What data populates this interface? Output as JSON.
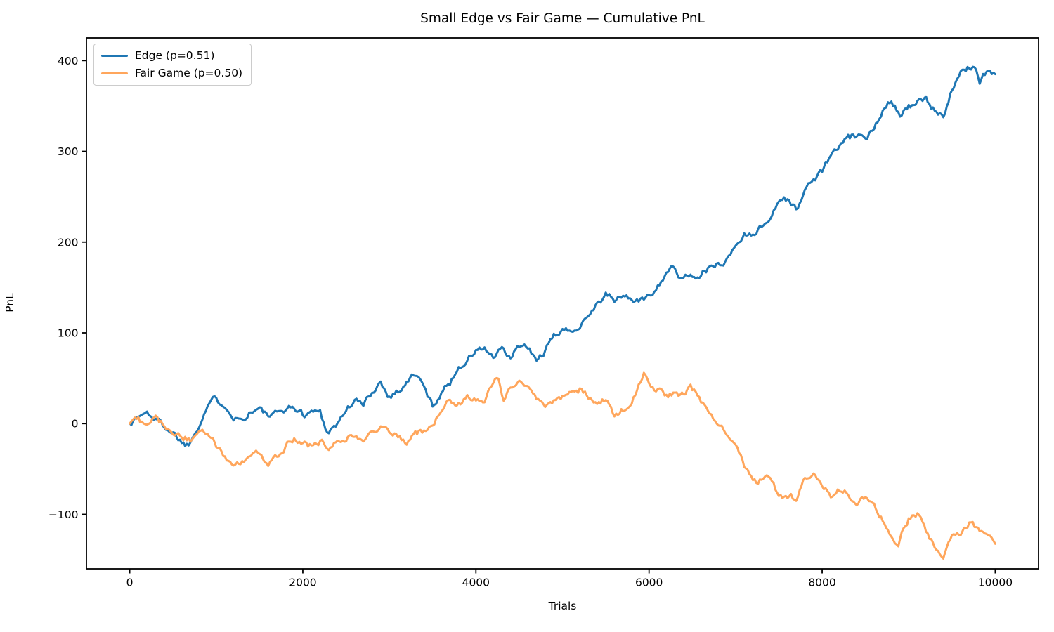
{
  "chart_data": {
    "type": "line",
    "title": "Small Edge vs Fair Game — Cumulative PnL",
    "xlabel": "Trials",
    "ylabel": "PnL",
    "xlim": [
      -500,
      10500
    ],
    "ylim": [
      -160,
      425
    ],
    "xticks": [
      0,
      2000,
      4000,
      6000,
      8000,
      10000
    ],
    "xtick_labels": [
      "0",
      "2000",
      "4000",
      "6000",
      "8000",
      "10000"
    ],
    "yticks": [
      -100,
      0,
      100,
      200,
      300,
      400
    ],
    "ytick_labels": [
      "−100",
      "0",
      "100",
      "200",
      "300",
      "400"
    ],
    "grid": false,
    "legend_position": "upper-left",
    "spine_color": "#000000",
    "noise": {
      "amplitude": 3.2,
      "persistence": 0.55,
      "step": 20,
      "seed": 1337
    },
    "series": [
      {
        "name": "Edge (p=0.51)",
        "color": "#1f77b4",
        "keypoints": [
          [
            0,
            0
          ],
          [
            100,
            8
          ],
          [
            200,
            12
          ],
          [
            300,
            5
          ],
          [
            400,
            -2
          ],
          [
            500,
            -10
          ],
          [
            600,
            -19
          ],
          [
            650,
            -24
          ],
          [
            700,
            -20
          ],
          [
            800,
            0
          ],
          [
            900,
            20
          ],
          [
            950,
            28
          ],
          [
            1000,
            25
          ],
          [
            1100,
            22
          ],
          [
            1200,
            8
          ],
          [
            1300,
            4
          ],
          [
            1400,
            14
          ],
          [
            1500,
            16
          ],
          [
            1600,
            8
          ],
          [
            1700,
            10
          ],
          [
            1800,
            17
          ],
          [
            1900,
            18
          ],
          [
            2000,
            10
          ],
          [
            2100,
            13
          ],
          [
            2200,
            14
          ],
          [
            2250,
            -2
          ],
          [
            2300,
            -8
          ],
          [
            2400,
            0
          ],
          [
            2500,
            15
          ],
          [
            2600,
            26
          ],
          [
            2700,
            20
          ],
          [
            2800,
            35
          ],
          [
            2900,
            46
          ],
          [
            3000,
            30
          ],
          [
            3100,
            36
          ],
          [
            3200,
            45
          ],
          [
            3300,
            55
          ],
          [
            3400,
            40
          ],
          [
            3500,
            19
          ],
          [
            3600,
            35
          ],
          [
            3700,
            45
          ],
          [
            3800,
            62
          ],
          [
            3900,
            70
          ],
          [
            4000,
            80
          ],
          [
            4100,
            83
          ],
          [
            4200,
            72
          ],
          [
            4300,
            81
          ],
          [
            4400,
            71
          ],
          [
            4500,
            86
          ],
          [
            4600,
            83
          ],
          [
            4700,
            69
          ],
          [
            4800,
            80
          ],
          [
            4900,
            95
          ],
          [
            5000,
            105
          ],
          [
            5100,
            99
          ],
          [
            5200,
            110
          ],
          [
            5300,
            121
          ],
          [
            5400,
            132
          ],
          [
            5500,
            142
          ],
          [
            5600,
            136
          ],
          [
            5700,
            141
          ],
          [
            5800,
            137
          ],
          [
            5900,
            135
          ],
          [
            6000,
            141
          ],
          [
            6100,
            152
          ],
          [
            6200,
            168
          ],
          [
            6270,
            171
          ],
          [
            6350,
            159
          ],
          [
            6400,
            164
          ],
          [
            6500,
            162
          ],
          [
            6600,
            166
          ],
          [
            6700,
            171
          ],
          [
            6800,
            175
          ],
          [
            6900,
            181
          ],
          [
            7000,
            196
          ],
          [
            7100,
            208
          ],
          [
            7200,
            211
          ],
          [
            7300,
            216
          ],
          [
            7400,
            228
          ],
          [
            7500,
            246
          ],
          [
            7600,
            248
          ],
          [
            7700,
            235
          ],
          [
            7800,
            256
          ],
          [
            7900,
            270
          ],
          [
            8000,
            278
          ],
          [
            8100,
            296
          ],
          [
            8200,
            305
          ],
          [
            8300,
            314
          ],
          [
            8400,
            318
          ],
          [
            8500,
            310
          ],
          [
            8600,
            327
          ],
          [
            8700,
            347
          ],
          [
            8800,
            358
          ],
          [
            8900,
            341
          ],
          [
            9000,
            350
          ],
          [
            9100,
            353
          ],
          [
            9200,
            356
          ],
          [
            9300,
            344
          ],
          [
            9400,
            341
          ],
          [
            9500,
            368
          ],
          [
            9600,
            384
          ],
          [
            9700,
            393
          ],
          [
            9765,
            395
          ],
          [
            9820,
            378
          ],
          [
            9900,
            388
          ],
          [
            10000,
            386
          ]
        ]
      },
      {
        "name": "Fair Game (p=0.50)",
        "color": "#ffa65c",
        "keypoints": [
          [
            0,
            0
          ],
          [
            100,
            5
          ],
          [
            200,
            -6
          ],
          [
            300,
            6
          ],
          [
            400,
            -3
          ],
          [
            500,
            -8
          ],
          [
            600,
            -14
          ],
          [
            700,
            -18
          ],
          [
            800,
            -12
          ],
          [
            900,
            -8
          ],
          [
            1000,
            -24
          ],
          [
            1100,
            -38
          ],
          [
            1180,
            -48
          ],
          [
            1300,
            -44
          ],
          [
            1400,
            -37
          ],
          [
            1500,
            -34
          ],
          [
            1600,
            -42
          ],
          [
            1700,
            -34
          ],
          [
            1800,
            -25
          ],
          [
            1900,
            -16
          ],
          [
            2000,
            -23
          ],
          [
            2100,
            -26
          ],
          [
            2200,
            -19
          ],
          [
            2300,
            -26
          ],
          [
            2400,
            -22
          ],
          [
            2500,
            -15
          ],
          [
            2600,
            -13
          ],
          [
            2700,
            -16
          ],
          [
            2800,
            -12
          ],
          [
            2900,
            0
          ],
          [
            3000,
            -6
          ],
          [
            3100,
            -15
          ],
          [
            3200,
            -20
          ],
          [
            3300,
            -12
          ],
          [
            3400,
            -8
          ],
          [
            3500,
            -4
          ],
          [
            3600,
            16
          ],
          [
            3700,
            25
          ],
          [
            3800,
            21
          ],
          [
            3900,
            30
          ],
          [
            4000,
            26
          ],
          [
            4100,
            20
          ],
          [
            4200,
            48
          ],
          [
            4250,
            53
          ],
          [
            4320,
            28
          ],
          [
            4480,
            47
          ],
          [
            4600,
            40
          ],
          [
            4700,
            28
          ],
          [
            4800,
            18
          ],
          [
            4900,
            23
          ],
          [
            5000,
            28
          ],
          [
            5100,
            35
          ],
          [
            5200,
            38
          ],
          [
            5300,
            29
          ],
          [
            5400,
            24
          ],
          [
            5500,
            28
          ],
          [
            5600,
            11
          ],
          [
            5700,
            15
          ],
          [
            5800,
            22
          ],
          [
            5900,
            45
          ],
          [
            5950,
            55
          ],
          [
            6050,
            38
          ],
          [
            6100,
            40
          ],
          [
            6200,
            30
          ],
          [
            6300,
            35
          ],
          [
            6400,
            31
          ],
          [
            6480,
            42
          ],
          [
            6600,
            25
          ],
          [
            6700,
            12
          ],
          [
            6800,
            2
          ],
          [
            6900,
            -10
          ],
          [
            7000,
            -20
          ],
          [
            7100,
            -45
          ],
          [
            7150,
            -56
          ],
          [
            7250,
            -66
          ],
          [
            7350,
            -54
          ],
          [
            7450,
            -70
          ],
          [
            7550,
            -84
          ],
          [
            7650,
            -80
          ],
          [
            7700,
            -88
          ],
          [
            7800,
            -58
          ],
          [
            7900,
            -55
          ],
          [
            8000,
            -70
          ],
          [
            8100,
            -80
          ],
          [
            8200,
            -72
          ],
          [
            8300,
            -78
          ],
          [
            8400,
            -87
          ],
          [
            8500,
            -79
          ],
          [
            8600,
            -90
          ],
          [
            8700,
            -105
          ],
          [
            8800,
            -125
          ],
          [
            8870,
            -139
          ],
          [
            8950,
            -115
          ],
          [
            9000,
            -105
          ],
          [
            9100,
            -101
          ],
          [
            9200,
            -118
          ],
          [
            9300,
            -135
          ],
          [
            9400,
            -143
          ],
          [
            9500,
            -121
          ],
          [
            9600,
            -126
          ],
          [
            9700,
            -111
          ],
          [
            9800,
            -117
          ],
          [
            9900,
            -121
          ],
          [
            10000,
            -130
          ]
        ]
      }
    ]
  }
}
